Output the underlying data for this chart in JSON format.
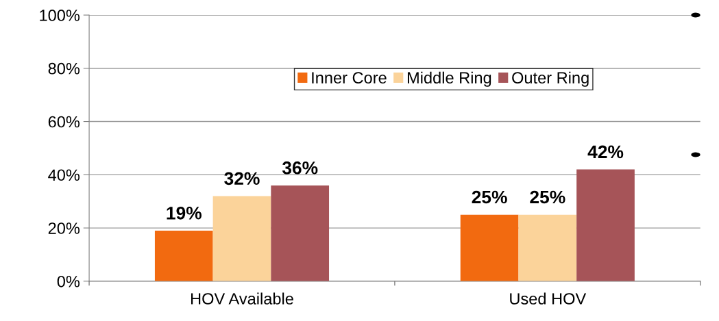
{
  "chart_data": {
    "type": "bar",
    "categories": [
      "HOV Available",
      "Used HOV"
    ],
    "series": [
      {
        "name": "Inner Core",
        "color": "#f26a10",
        "values": [
          19,
          25
        ]
      },
      {
        "name": "Middle Ring",
        "color": "#fbd39a",
        "values": [
          32,
          25
        ]
      },
      {
        "name": "Outer Ring",
        "color": "#a65458",
        "values": [
          36,
          42
        ]
      }
    ],
    "ylim": [
      0,
      100
    ],
    "yticks": [
      {
        "value": 0,
        "label": "0%"
      },
      {
        "value": 20,
        "label": "20%"
      },
      {
        "value": 40,
        "label": "40%"
      },
      {
        "value": 60,
        "label": "60%"
      },
      {
        "value": 80,
        "label": "80%"
      },
      {
        "value": 100,
        "label": "100%"
      }
    ],
    "value_labels": [
      [
        "19%",
        "25%"
      ],
      [
        "32%",
        "25%"
      ],
      [
        "36%",
        "42%"
      ]
    ],
    "grid": "y",
    "legend": "top"
  }
}
